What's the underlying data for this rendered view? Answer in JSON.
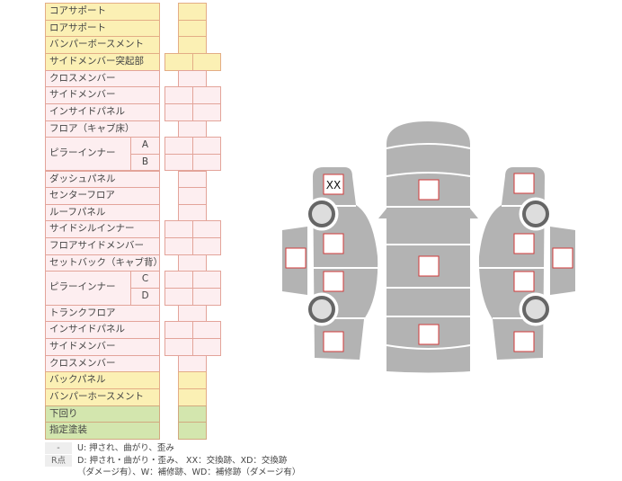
{
  "parts": [
    {
      "label": "コアサポート",
      "color": "yellow",
      "boxes": 1
    },
    {
      "label": "ロアサポート",
      "color": "yellow",
      "boxes": 1
    },
    {
      "label": "バンパーボースメント",
      "color": "yellow",
      "boxes": 1
    },
    {
      "label": "サイドメンバー突起部",
      "color": "yellow",
      "boxes": 2
    },
    {
      "label": "クロスメンバー",
      "color": "pink",
      "boxes": 1
    },
    {
      "label": "サイドメンバー",
      "color": "pink",
      "boxes": 2
    },
    {
      "label": "インサイドパネル",
      "color": "pink",
      "boxes": 2
    },
    {
      "label": "フロア（キャブ床）",
      "color": "pink",
      "boxes": 1
    },
    {
      "label": "ピラーインナー",
      "color": "pink",
      "boxes": 2,
      "subs": [
        "A",
        "B"
      ]
    },
    {
      "label": "ダッシュパネル",
      "color": "pink",
      "boxes": 1
    },
    {
      "label": "センターフロア",
      "color": "pink",
      "boxes": 1
    },
    {
      "label": "ルーフパネル",
      "color": "pink",
      "boxes": 1
    },
    {
      "label": "サイドシルインナー",
      "color": "pink",
      "boxes": 2
    },
    {
      "label": "フロアサイドメンバー",
      "color": "pink",
      "boxes": 2
    },
    {
      "label": "セットバック（キャブ背）",
      "color": "pink",
      "boxes": 1
    },
    {
      "label": "ピラーインナー",
      "color": "pink",
      "boxes": 2,
      "subs": [
        "C",
        "D"
      ]
    },
    {
      "label": "トランクフロア",
      "color": "pink",
      "boxes": 1
    },
    {
      "label": "インサイドパネル",
      "color": "pink",
      "boxes": 2
    },
    {
      "label": "サイドメンバー",
      "color": "pink",
      "boxes": 2
    },
    {
      "label": "クロスメンバー",
      "color": "pink",
      "boxes": 1
    },
    {
      "label": "バックパネル",
      "color": "yellow",
      "boxes": 1
    },
    {
      "label": "バンパーホースメント",
      "color": "yellow",
      "boxes": 1
    },
    {
      "label": "下回り",
      "color": "green",
      "boxes": 1
    },
    {
      "label": "指定塗装",
      "color": "green",
      "boxes": 1
    }
  ],
  "legend": {
    "row1_key": "-",
    "row1_text": "U: 押され、曲がり、歪み",
    "row2_key": "R点",
    "row2_text_line1": "D: 押され・曲がり・歪み、 XX：交換跡、XD：交換跡",
    "row2_text_line2": "（ダメージ有）、W：補修跡、WD：補修跡（ダメージ有）"
  },
  "diagram": {
    "front_left_mark": "XX"
  },
  "colors": {
    "yellow": "#fbf0b4",
    "pink": "#fdeef0",
    "green": "#d3e6ae",
    "body": "#b3b3b3",
    "mark_border": "#d23a3a"
  }
}
